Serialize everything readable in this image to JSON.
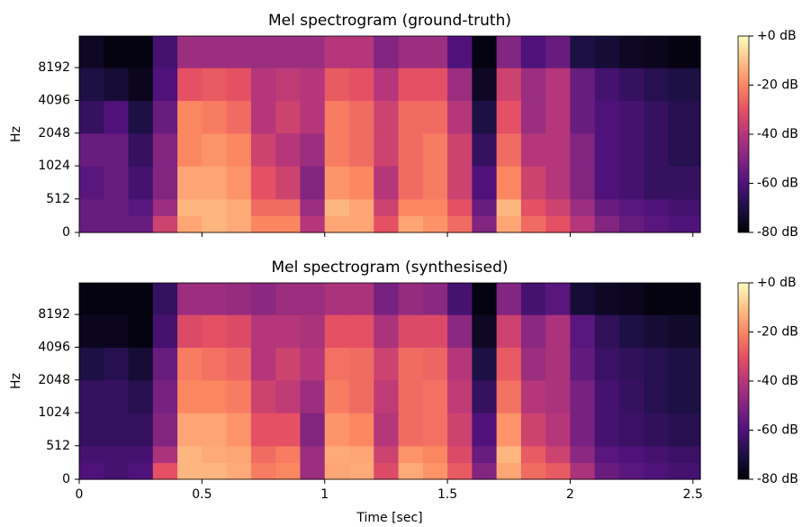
{
  "chart_data": [
    {
      "type": "heatmap",
      "title": "Mel spectrogram (ground-truth)",
      "ylabel": "Hz",
      "xlim": [
        0,
        2.53
      ],
      "xticks": [
        0,
        0.5,
        1,
        1.5,
        2,
        2.5
      ],
      "xtick_labels": false,
      "ylim": [
        0,
        16000
      ],
      "yscale": "mel",
      "yticks": [
        0,
        512,
        1024,
        2048,
        4096,
        8192
      ],
      "x": [
        0,
        0.1,
        0.2,
        0.3,
        0.4,
        0.5,
        0.6,
        0.7,
        0.8,
        0.9,
        1.0,
        1.1,
        1.2,
        1.3,
        1.4,
        1.5,
        1.6,
        1.7,
        1.8,
        1.9,
        2.0,
        2.1,
        2.2,
        2.3,
        2.4
      ],
      "y": [
        0,
        256,
        512,
        1024,
        2048,
        4096,
        8192
      ],
      "values": [
        [
          -55,
          -55,
          -55,
          -35,
          -15,
          -12,
          -14,
          -20,
          -20,
          -40,
          -15,
          -15,
          -30,
          -15,
          -18,
          -25,
          -50,
          -15,
          -25,
          -30,
          -40,
          -50,
          -55,
          -58,
          -60
        ],
        [
          -55,
          -55,
          -58,
          -45,
          -12,
          -12,
          -14,
          -25,
          -25,
          -45,
          -12,
          -15,
          -35,
          -20,
          -20,
          -30,
          -55,
          -12,
          -30,
          -35,
          -45,
          -55,
          -58,
          -60,
          -62
        ],
        [
          -58,
          -55,
          -62,
          -50,
          -15,
          -15,
          -18,
          -30,
          -35,
          -50,
          -18,
          -20,
          -40,
          -25,
          -22,
          -35,
          -60,
          -20,
          -35,
          -40,
          -50,
          -60,
          -62,
          -65,
          -65
        ],
        [
          -55,
          -55,
          -65,
          -50,
          -20,
          -18,
          -20,
          -35,
          -40,
          -45,
          -22,
          -25,
          -35,
          -25,
          -22,
          -35,
          -65,
          -25,
          -40,
          -40,
          -50,
          -60,
          -62,
          -65,
          -68
        ],
        [
          -65,
          -60,
          -70,
          -55,
          -20,
          -22,
          -25,
          -40,
          -35,
          -40,
          -22,
          -25,
          -35,
          -25,
          -25,
          -40,
          -70,
          -30,
          -45,
          -40,
          -55,
          -60,
          -62,
          -65,
          -68
        ],
        [
          -70,
          -72,
          -76,
          -60,
          -30,
          -28,
          -30,
          -40,
          -38,
          -40,
          -28,
          -30,
          -40,
          -30,
          -30,
          -45,
          -75,
          -35,
          -45,
          -40,
          -55,
          -62,
          -65,
          -68,
          -70
        ],
        [
          -75,
          -78,
          -78,
          -62,
          -45,
          -45,
          -45,
          -45,
          -45,
          -45,
          -40,
          -40,
          -50,
          -45,
          -45,
          -60,
          -78,
          -50,
          -60,
          -55,
          -70,
          -72,
          -75,
          -76,
          -78
        ]
      ],
      "colorbar": {
        "lim": [
          -80,
          0
        ],
        "ticks": [
          {
            "value": 0,
            "label": "+0 dB"
          },
          {
            "value": -20,
            "label": "-20 dB"
          },
          {
            "value": -40,
            "label": "-40 dB"
          },
          {
            "value": -60,
            "label": "-60 dB"
          },
          {
            "value": -80,
            "label": "-80 dB"
          }
        ]
      }
    },
    {
      "type": "heatmap",
      "title": "Mel spectrogram (synthesised)",
      "ylabel": "Hz",
      "xlabel": "Time [sec]",
      "xlim": [
        0,
        2.53
      ],
      "xticks": [
        0,
        0.5,
        1,
        1.5,
        2,
        2.5
      ],
      "xtick_labels": true,
      "ylim": [
        0,
        16000
      ],
      "yscale": "mel",
      "yticks": [
        0,
        512,
        1024,
        2048,
        4096,
        8192
      ],
      "x": [
        0,
        0.1,
        0.2,
        0.3,
        0.4,
        0.5,
        0.6,
        0.7,
        0.8,
        0.9,
        1.0,
        1.1,
        1.2,
        1.3,
        1.4,
        1.5,
        1.6,
        1.7,
        1.8,
        1.9,
        2.0,
        2.1,
        2.2,
        2.3,
        2.4
      ],
      "y": [
        0,
        256,
        512,
        1024,
        2048,
        4096,
        8192
      ],
      "values": [
        [
          -60,
          -62,
          -60,
          -30,
          -12,
          -12,
          -14,
          -22,
          -20,
          -45,
          -15,
          -14,
          -32,
          -14,
          -18,
          -28,
          -50,
          -15,
          -25,
          -28,
          -42,
          -55,
          -58,
          -60,
          -62
        ],
        [
          -62,
          -62,
          -62,
          -42,
          -12,
          -14,
          -15,
          -25,
          -22,
          -45,
          -14,
          -15,
          -35,
          -18,
          -20,
          -32,
          -55,
          -12,
          -28,
          -35,
          -48,
          -58,
          -60,
          -62,
          -64
        ],
        [
          -65,
          -65,
          -65,
          -50,
          -15,
          -15,
          -18,
          -30,
          -30,
          -50,
          -18,
          -20,
          -40,
          -25,
          -24,
          -35,
          -60,
          -18,
          -35,
          -40,
          -52,
          -62,
          -64,
          -66,
          -68
        ],
        [
          -65,
          -65,
          -68,
          -52,
          -20,
          -20,
          -22,
          -35,
          -38,
          -45,
          -22,
          -25,
          -38,
          -25,
          -24,
          -38,
          -65,
          -24,
          -40,
          -42,
          -52,
          -62,
          -65,
          -68,
          -70
        ],
        [
          -70,
          -68,
          -72,
          -55,
          -22,
          -24,
          -26,
          -40,
          -35,
          -40,
          -24,
          -25,
          -35,
          -25,
          -26,
          -40,
          -70,
          -28,
          -45,
          -42,
          -56,
          -64,
          -66,
          -68,
          -70
        ],
        [
          -76,
          -76,
          -78,
          -62,
          -32,
          -30,
          -32,
          -40,
          -40,
          -42,
          -30,
          -30,
          -42,
          -32,
          -32,
          -48,
          -75,
          -35,
          -48,
          -42,
          -58,
          -66,
          -70,
          -72,
          -74
        ],
        [
          -78,
          -78,
          -78,
          -65,
          -45,
          -45,
          -46,
          -48,
          -45,
          -45,
          -42,
          -42,
          -52,
          -46,
          -48,
          -62,
          -78,
          -50,
          -62,
          -58,
          -72,
          -75,
          -76,
          -78,
          -78
        ]
      ],
      "colorbar": {
        "lim": [
          -80,
          0
        ],
        "ticks": [
          {
            "value": 0,
            "label": "+0 dB"
          },
          {
            "value": -20,
            "label": "-20 dB"
          },
          {
            "value": -40,
            "label": "-40 dB"
          },
          {
            "value": -60,
            "label": "-60 dB"
          },
          {
            "value": -80,
            "label": "-80 dB"
          }
        ]
      }
    }
  ]
}
